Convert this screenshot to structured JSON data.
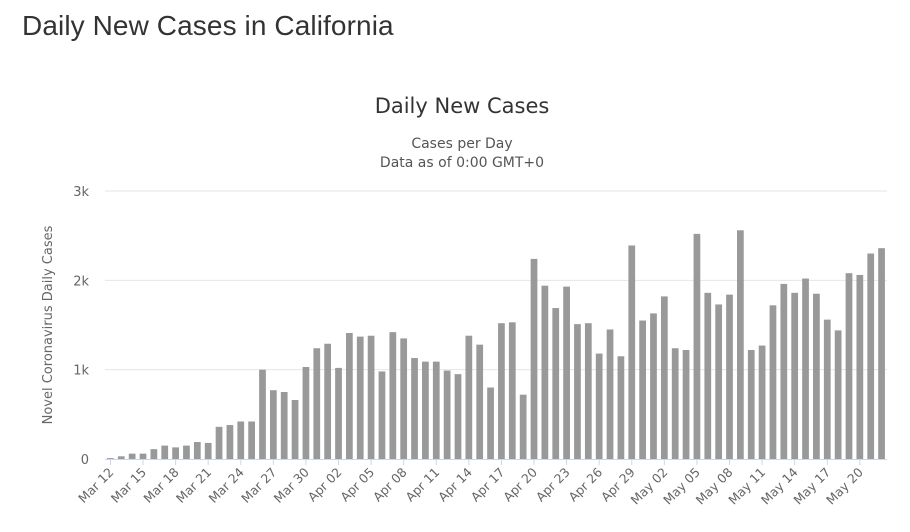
{
  "page": {
    "heading": "Daily New Cases in California"
  },
  "colors": {
    "bar": "#999999",
    "grid": "#e6e6e6",
    "text": "#333333",
    "axis_text": "#666666"
  },
  "chart_data": {
    "type": "bar",
    "title": "Daily New Cases",
    "subtitle_line1": "Cases per Day",
    "subtitle_line2": "Data as of 0:00 GMT+0",
    "ylabel": "Novel Coronavirus Daily Cases",
    "xlabel": "",
    "ylim": [
      0,
      3000
    ],
    "yticks": [
      0,
      1000,
      2000,
      3000
    ],
    "ytick_labels": [
      "0",
      "1k",
      "2k",
      "3k"
    ],
    "grid": true,
    "legend": "none",
    "categories": [
      "Mar 12",
      "Mar 13",
      "Mar 14",
      "Mar 15",
      "Mar 16",
      "Mar 17",
      "Mar 18",
      "Mar 19",
      "Mar 20",
      "Mar 21",
      "Mar 22",
      "Mar 23",
      "Mar 24",
      "Mar 25",
      "Mar 26",
      "Mar 27",
      "Mar 28",
      "Mar 29",
      "Mar 30",
      "Mar 31",
      "Apr 01",
      "Apr 02",
      "Apr 03",
      "Apr 04",
      "Apr 05",
      "Apr 06",
      "Apr 07",
      "Apr 08",
      "Apr 09",
      "Apr 10",
      "Apr 11",
      "Apr 12",
      "Apr 13",
      "Apr 14",
      "Apr 15",
      "Apr 16",
      "Apr 17",
      "Apr 18",
      "Apr 19",
      "Apr 20",
      "Apr 21",
      "Apr 22",
      "Apr 23",
      "Apr 24",
      "Apr 25",
      "Apr 26",
      "Apr 27",
      "Apr 28",
      "Apr 29",
      "Apr 30",
      "May 01",
      "May 02",
      "May 03",
      "May 04",
      "May 05",
      "May 06",
      "May 07",
      "May 08",
      "May 09",
      "May 10",
      "May 11",
      "May 12",
      "May 13",
      "May 14",
      "May 15",
      "May 16",
      "May 17",
      "May 18",
      "May 19",
      "May 20",
      "May 21",
      "May 22"
    ],
    "xtick_labels": [
      "Mar 12",
      "Mar 15",
      "Mar 18",
      "Mar 21",
      "Mar 24",
      "Mar 27",
      "Mar 30",
      "Apr 02",
      "Apr 05",
      "Apr 08",
      "Apr 11",
      "Apr 14",
      "Apr 17",
      "Apr 20",
      "Apr 23",
      "Apr 26",
      "Apr 29",
      "May 02",
      "May 05",
      "May 08",
      "May 11",
      "May 14",
      "May 17",
      "May 20"
    ],
    "values": [
      10,
      30,
      60,
      60,
      110,
      150,
      130,
      150,
      190,
      180,
      360,
      380,
      420,
      420,
      1000,
      770,
      750,
      660,
      1030,
      1240,
      1290,
      1020,
      1410,
      1370,
      1380,
      980,
      1420,
      1350,
      1130,
      1090,
      1090,
      990,
      950,
      1380,
      1280,
      800,
      1520,
      1530,
      720,
      2240,
      1940,
      1690,
      1930,
      1510,
      1520,
      1180,
      1450,
      1150,
      2390,
      1550,
      1630,
      1820,
      1240,
      1220,
      2520,
      1860,
      1730,
      1840,
      2560,
      1220,
      1270,
      1720,
      1960,
      1860,
      2020,
      1850,
      1560,
      1440,
      2080,
      2060,
      2300,
      2360
    ]
  }
}
